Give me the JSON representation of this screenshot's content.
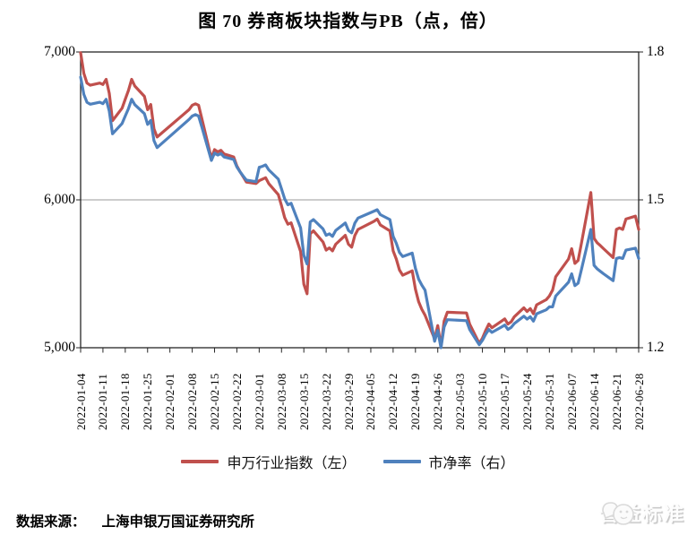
{
  "title": "图 70 券商板块指数与PB（点，倍）",
  "colors": {
    "index_line": "#C0504D",
    "pb_line": "#4F81BD",
    "frame": "#262626",
    "grid": "#9a9a9a"
  },
  "y_axis_left": {
    "tick_labels": [
      "7,000",
      "6,000",
      "5,000"
    ]
  },
  "y_axis_right": {
    "tick_labels": [
      "1.8",
      "1.5",
      "1.2"
    ]
  },
  "x_axis": {
    "tick_labels": [
      "2022-01-04",
      "2022-01-11",
      "2022-01-18",
      "2022-01-25",
      "2022-02-01",
      "2022-02-08",
      "2022-02-15",
      "2022-02-22",
      "2022-03-01",
      "2022-03-08",
      "2022-03-15",
      "2022-03-22",
      "2022-03-29",
      "2022-04-05",
      "2022-04-12",
      "2022-04-19",
      "2022-04-26",
      "2022-05-03",
      "2022-05-10",
      "2022-05-17",
      "2022-05-24",
      "2022-05-31",
      "2022-06-07",
      "2022-06-14",
      "2022-06-21",
      "2022-06-28"
    ]
  },
  "legend": [
    {
      "label": "申万行业指数（左）",
      "color": "#C0504D"
    },
    {
      "label": "市净率（右）",
      "color": "#4F81BD"
    }
  ],
  "source": {
    "label": "数据来源：",
    "value": "上海申银万国证券研究所"
  },
  "watermark": {
    "text": "普益标准"
  },
  "chart_data": {
    "type": "line",
    "title": "图 70 券商板块指数与PB（点，倍）",
    "x_range": [
      "2022-01-04",
      "2022-06-28"
    ],
    "left_ylim": [
      5000,
      7000
    ],
    "right_ylim": [
      1.2,
      1.8
    ],
    "left_ticks": [
      7000,
      6000,
      5000
    ],
    "right_ticks": [
      1.8,
      1.5,
      1.2
    ],
    "gridlines_left": [
      6000
    ],
    "x_dates": [
      "2022-01-04",
      "2022-01-05",
      "2022-01-06",
      "2022-01-07",
      "2022-01-10",
      "2022-01-11",
      "2022-01-12",
      "2022-01-13",
      "2022-01-14",
      "2022-01-17",
      "2022-01-18",
      "2022-01-19",
      "2022-01-20",
      "2022-01-21",
      "2022-01-24",
      "2022-01-25",
      "2022-01-26",
      "2022-01-27",
      "2022-01-28",
      "2022-02-07",
      "2022-02-08",
      "2022-02-09",
      "2022-02-10",
      "2022-02-11",
      "2022-02-14",
      "2022-02-15",
      "2022-02-16",
      "2022-02-17",
      "2022-02-18",
      "2022-02-21",
      "2022-02-22",
      "2022-02-23",
      "2022-02-24",
      "2022-02-25",
      "2022-02-28",
      "2022-03-01",
      "2022-03-02",
      "2022-03-03",
      "2022-03-04",
      "2022-03-07",
      "2022-03-08",
      "2022-03-09",
      "2022-03-10",
      "2022-03-11",
      "2022-03-14",
      "2022-03-15",
      "2022-03-16",
      "2022-03-17",
      "2022-03-18",
      "2022-03-21",
      "2022-03-22",
      "2022-03-23",
      "2022-03-24",
      "2022-03-25",
      "2022-03-28",
      "2022-03-29",
      "2022-03-30",
      "2022-03-31",
      "2022-04-01",
      "2022-04-06",
      "2022-04-07",
      "2022-04-08",
      "2022-04-11",
      "2022-04-12",
      "2022-04-13",
      "2022-04-14",
      "2022-04-15",
      "2022-04-18",
      "2022-04-19",
      "2022-04-20",
      "2022-04-21",
      "2022-04-22",
      "2022-04-25",
      "2022-04-26",
      "2022-04-27",
      "2022-04-28",
      "2022-04-29",
      "2022-05-05",
      "2022-05-06",
      "2022-05-09",
      "2022-05-10",
      "2022-05-11",
      "2022-05-12",
      "2022-05-13",
      "2022-05-16",
      "2022-05-17",
      "2022-05-18",
      "2022-05-19",
      "2022-05-20",
      "2022-05-23",
      "2022-05-24",
      "2022-05-25",
      "2022-05-26",
      "2022-05-27",
      "2022-05-30",
      "2022-05-31",
      "2022-06-01",
      "2022-06-02",
      "2022-06-06",
      "2022-06-07",
      "2022-06-08",
      "2022-06-09",
      "2022-06-10",
      "2022-06-13",
      "2022-06-14",
      "2022-06-15",
      "2022-06-16",
      "2022-06-17",
      "2022-06-20",
      "2022-06-21",
      "2022-06-22",
      "2022-06-23",
      "2022-06-24",
      "2022-06-27",
      "2022-06-28"
    ],
    "series": [
      {
        "name": "申万行业指数（左）",
        "axis": "left",
        "color": "#C0504D",
        "values": [
          6995,
          6855,
          6790,
          6775,
          6790,
          6780,
          6815,
          6720,
          6535,
          6620,
          6680,
          6740,
          6815,
          6770,
          6700,
          6610,
          6645,
          6480,
          6425,
          6610,
          6640,
          6650,
          6640,
          6550,
          6280,
          6340,
          6325,
          6335,
          6310,
          6290,
          6230,
          6190,
          6155,
          6120,
          6110,
          6130,
          6140,
          6150,
          6110,
          6035,
          5960,
          5880,
          5835,
          5845,
          5650,
          5430,
          5365,
          5770,
          5790,
          5715,
          5660,
          5675,
          5655,
          5700,
          5760,
          5700,
          5680,
          5760,
          5800,
          5855,
          5870,
          5830,
          5790,
          5655,
          5600,
          5525,
          5490,
          5520,
          5395,
          5310,
          5260,
          5220,
          5060,
          5150,
          5005,
          5180,
          5240,
          5235,
          5160,
          5030,
          5065,
          5115,
          5160,
          5135,
          5180,
          5195,
          5160,
          5175,
          5210,
          5270,
          5245,
          5265,
          5230,
          5290,
          5325,
          5350,
          5390,
          5480,
          5600,
          5670,
          5570,
          5590,
          5700,
          6050,
          5740,
          5710,
          5690,
          5670,
          5610,
          5800,
          5810,
          5800,
          5870,
          5890,
          5800
        ]
      },
      {
        "name": "市净率（右）",
        "axis": "right",
        "color": "#4F81BD",
        "values": [
          1.749,
          1.714,
          1.698,
          1.694,
          1.698,
          1.695,
          1.704,
          1.68,
          1.634,
          1.655,
          1.67,
          1.685,
          1.704,
          1.693,
          1.675,
          1.653,
          1.661,
          1.62,
          1.606,
          1.663,
          1.67,
          1.673,
          1.67,
          1.648,
          1.58,
          1.595,
          1.591,
          1.594,
          1.587,
          1.582,
          1.567,
          1.557,
          1.548,
          1.54,
          1.537,
          1.566,
          1.568,
          1.571,
          1.561,
          1.542,
          1.522,
          1.502,
          1.49,
          1.493,
          1.443,
          1.387,
          1.37,
          1.455,
          1.46,
          1.441,
          1.428,
          1.431,
          1.426,
          1.438,
          1.453,
          1.438,
          1.433,
          1.453,
          1.463,
          1.477,
          1.48,
          1.47,
          1.46,
          1.426,
          1.412,
          1.393,
          1.385,
          1.392,
          1.361,
          1.339,
          1.327,
          1.317,
          1.213,
          1.235,
          1.2,
          1.242,
          1.257,
          1.255,
          1.237,
          1.206,
          1.215,
          1.227,
          1.237,
          1.231,
          1.242,
          1.246,
          1.237,
          1.241,
          1.249,
          1.264,
          1.258,
          1.263,
          1.254,
          1.269,
          1.277,
          1.283,
          1.283,
          1.305,
          1.333,
          1.35,
          1.326,
          1.331,
          1.357,
          1.44,
          1.367,
          1.36,
          1.355,
          1.35,
          1.336,
          1.381,
          1.383,
          1.381,
          1.398,
          1.402,
          1.381
        ]
      }
    ]
  }
}
